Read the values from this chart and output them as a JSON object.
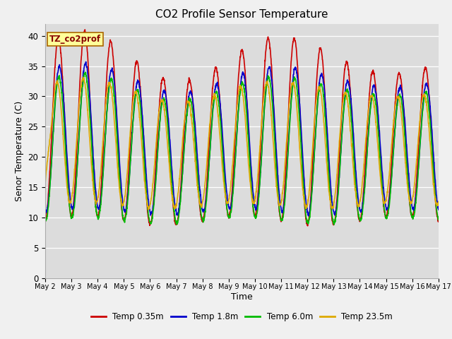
{
  "title": "CO2 Profile Sensor Temperature",
  "xlabel": "Time",
  "ylabel": "Senor Temperature (C)",
  "ylim": [
    0,
    42
  ],
  "yticks": [
    0,
    5,
    10,
    15,
    20,
    25,
    30,
    35,
    40
  ],
  "background_color": "#dcdcdc",
  "fig_bg": "#f0f0f0",
  "legend_label": "TZ_co2prof",
  "legend_box_color": "#ffff99",
  "legend_box_edge": "#aa6600",
  "series": [
    {
      "label": "Temp 0.35m",
      "color": "#cc0000",
      "lw": 1.2
    },
    {
      "label": "Temp 1.8m",
      "color": "#0000cc",
      "lw": 1.2
    },
    {
      "label": "Temp 6.0m",
      "color": "#00bb00",
      "lw": 1.2
    },
    {
      "label": "Temp 23.5m",
      "color": "#ddaa00",
      "lw": 1.2
    }
  ],
  "x_start_day": 2,
  "x_end_day": 17,
  "xtick_days": [
    2,
    3,
    4,
    5,
    6,
    7,
    8,
    9,
    10,
    11,
    12,
    13,
    14,
    15,
    16,
    17
  ],
  "xtick_labels": [
    "May 2",
    "May 3",
    "May 4",
    "May 5",
    "May 6",
    "May 7",
    "May 8",
    "May 9",
    "May 10",
    "May 11",
    "May 12",
    "May 13",
    "May 14",
    "May 15",
    "May 16",
    "May 17"
  ]
}
